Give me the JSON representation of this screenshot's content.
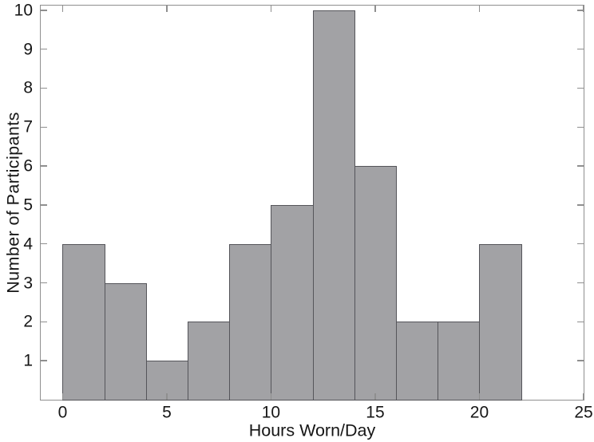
{
  "figure": {
    "background": "#ffffff"
  },
  "chart_data": {
    "type": "bar",
    "subtype": "histogram",
    "title": "",
    "xlabel": "Hours Worn/Day",
    "ylabel": "Number of Participants",
    "bin_edges": [
      0,
      2,
      4,
      6,
      8,
      10,
      12,
      14,
      16,
      18,
      20,
      22
    ],
    "counts": [
      4,
      3,
      1,
      2,
      4,
      5,
      10,
      6,
      2,
      2,
      4
    ],
    "x_ticks": [
      0,
      5,
      10,
      15,
      20,
      25
    ],
    "y_ticks": [
      1,
      2,
      3,
      4,
      5,
      6,
      7,
      8,
      9,
      10
    ],
    "xlim": [
      -1.05,
      25
    ],
    "ylim": [
      0,
      10.12
    ],
    "grid": false,
    "legend": null,
    "tick_direction": "in",
    "box": true,
    "colors": {
      "bar_fill": "#a2a2a5",
      "bar_edge": "#55555a",
      "axis": "#8f8f8f",
      "text": "#161616",
      "background": "#ffffff"
    }
  }
}
